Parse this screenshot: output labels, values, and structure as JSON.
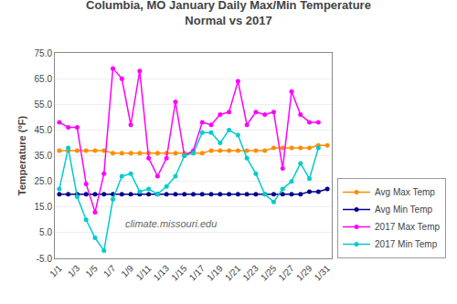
{
  "chart_data": {
    "type": "line",
    "title": "Columbia, MO January Daily Max/Min Temperature\nNormal vs 2017",
    "y_label": "Temperature (°F)",
    "annotations": [
      "climate.missouri.edu"
    ],
    "x": [
      1,
      2,
      3,
      4,
      5,
      6,
      7,
      8,
      9,
      10,
      11,
      12,
      13,
      14,
      15,
      16,
      17,
      18,
      19,
      20,
      21,
      22,
      23,
      24,
      25,
      26,
      27,
      28,
      29,
      30,
      31
    ],
    "series": [
      {
        "name": "Avg Max Temp",
        "color": "#FF8C00",
        "marker": "circle",
        "line_style": "solid",
        "values": [
          37,
          37,
          37,
          37,
          37,
          37,
          36,
          36,
          36,
          36,
          36,
          36,
          36,
          36,
          36,
          36,
          36,
          37,
          37,
          37,
          37,
          37,
          37,
          37,
          38,
          38,
          38,
          38,
          38,
          39,
          39
        ]
      },
      {
        "name": "Avg Min Temp",
        "color": "#00008B",
        "marker": "circle",
        "line_style": "solid",
        "values": [
          20,
          20,
          20,
          20,
          20,
          20,
          20,
          20,
          20,
          20,
          20,
          20,
          20,
          20,
          20,
          20,
          20,
          20,
          20,
          20,
          20,
          20,
          20,
          20,
          20,
          20,
          20,
          20,
          21,
          21,
          22
        ]
      },
      {
        "name": "2017 Max Temp",
        "color": "#FF00FF",
        "marker": "circle",
        "line_style": "solid",
        "values": [
          48,
          46,
          46,
          24,
          13,
          28,
          69,
          65,
          47,
          68,
          34,
          27,
          34,
          56,
          35,
          37,
          48,
          47,
          51,
          52,
          64,
          47,
          52,
          51,
          52,
          30,
          60,
          51,
          48,
          48,
          null
        ]
      },
      {
        "name": "2017 Min Temp",
        "color": "#00CCCC",
        "marker": "circle",
        "line_style": "solid",
        "values": [
          22,
          38,
          19,
          10,
          3,
          -2,
          18,
          27,
          28,
          21,
          22,
          20,
          23,
          27,
          35,
          36,
          44,
          44,
          40,
          45,
          43,
          34,
          28,
          20,
          17,
          22,
          25,
          32,
          26,
          38,
          null
        ]
      }
    ],
    "xlim": [
      0.5,
      31.5
    ],
    "xticks": [
      {
        "value": 1,
        "label": "1/1"
      },
      {
        "value": 3,
        "label": "1/3"
      },
      {
        "value": 5,
        "label": "1/5"
      },
      {
        "value": 7,
        "label": "1/7"
      },
      {
        "value": 9,
        "label": "1/9"
      },
      {
        "value": 11,
        "label": "1/11"
      },
      {
        "value": 13,
        "label": "1/13"
      },
      {
        "value": 15,
        "label": "1/15"
      },
      {
        "value": 17,
        "label": "1/17"
      },
      {
        "value": 19,
        "label": "1/19"
      },
      {
        "value": 21,
        "label": "1/21"
      },
      {
        "value": 23,
        "label": "1/23"
      },
      {
        "value": 25,
        "label": "1/25"
      },
      {
        "value": 27,
        "label": "1/27"
      },
      {
        "value": 29,
        "label": "1/29"
      },
      {
        "value": 31,
        "label": "1/31"
      }
    ],
    "ylim": [
      -5,
      75
    ],
    "yticks": [
      {
        "value": -5,
        "label": "-5.0"
      },
      {
        "value": 5,
        "label": "5.0"
      },
      {
        "value": 15,
        "label": "15.0"
      },
      {
        "value": 25,
        "label": "25.0"
      },
      {
        "value": 35,
        "label": "35.0"
      },
      {
        "value": 45,
        "label": "45.0"
      },
      {
        "value": 55,
        "label": "55.0"
      },
      {
        "value": 65,
        "label": "65.0"
      },
      {
        "value": 75,
        "label": "75.0"
      }
    ],
    "grid": "y",
    "legend": "lower right"
  }
}
